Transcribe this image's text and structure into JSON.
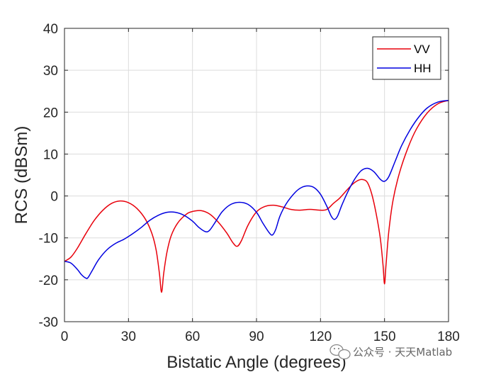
{
  "chart_data": {
    "type": "line",
    "title": "",
    "xlabel": "Bistatic Angle (degrees)",
    "ylabel": "RCS (dBSm)",
    "xlim": [
      0,
      180
    ],
    "ylim": [
      -30,
      40
    ],
    "xticks": [
      0,
      30,
      60,
      90,
      120,
      150,
      180
    ],
    "yticks": [
      -30,
      -20,
      -10,
      0,
      10,
      20,
      30,
      40
    ],
    "grid": true,
    "legend": "top-right",
    "series": [
      {
        "name": "VV",
        "color": "#e8000b",
        "points": [
          [
            0,
            -15.6
          ],
          [
            3,
            -14.6
          ],
          [
            6,
            -12.5
          ],
          [
            10,
            -9.0
          ],
          [
            14,
            -5.8
          ],
          [
            18,
            -3.4
          ],
          [
            22,
            -1.8
          ],
          [
            26,
            -1.2
          ],
          [
            30,
            -1.6
          ],
          [
            34,
            -3.0
          ],
          [
            38,
            -5.6
          ],
          [
            41,
            -9.0
          ],
          [
            43,
            -13.0
          ],
          [
            44.5,
            -18.5
          ],
          [
            45.5,
            -23.0
          ],
          [
            46.5,
            -18.5
          ],
          [
            48,
            -13.5
          ],
          [
            50,
            -9.5
          ],
          [
            53,
            -6.5
          ],
          [
            57,
            -4.4
          ],
          [
            60,
            -3.7
          ],
          [
            64,
            -3.5
          ],
          [
            68,
            -4.3
          ],
          [
            72,
            -6.2
          ],
          [
            76,
            -8.8
          ],
          [
            79,
            -11.2
          ],
          [
            81,
            -12.0
          ],
          [
            83,
            -10.6
          ],
          [
            86,
            -7.0
          ],
          [
            90,
            -3.8
          ],
          [
            94,
            -2.5
          ],
          [
            98,
            -2.2
          ],
          [
            102,
            -2.6
          ],
          [
            106,
            -3.2
          ],
          [
            110,
            -3.4
          ],
          [
            115,
            -3.2
          ],
          [
            120,
            -3.4
          ],
          [
            123,
            -3.2
          ],
          [
            126,
            -1.8
          ],
          [
            129,
            -0.5
          ],
          [
            132,
            1.2
          ],
          [
            135,
            2.8
          ],
          [
            138,
            3.8
          ],
          [
            140,
            3.9
          ],
          [
            142,
            3.2
          ],
          [
            144,
            0.5
          ],
          [
            146,
            -4.0
          ],
          [
            148,
            -10.0
          ],
          [
            149.3,
            -16.5
          ],
          [
            150,
            -21.0
          ],
          [
            150.7,
            -16.5
          ],
          [
            152,
            -8.5
          ],
          [
            154,
            -1.0
          ],
          [
            157,
            5.5
          ],
          [
            161,
            11.5
          ],
          [
            165,
            16.0
          ],
          [
            170,
            19.8
          ],
          [
            175,
            22.0
          ],
          [
            180,
            22.8
          ]
        ]
      },
      {
        "name": "HH",
        "color": "#0000e0",
        "points": [
          [
            0,
            -15.6
          ],
          [
            3,
            -16.0
          ],
          [
            6,
            -17.5
          ],
          [
            8,
            -18.8
          ],
          [
            10,
            -19.6
          ],
          [
            11,
            -19.5
          ],
          [
            13,
            -17.8
          ],
          [
            16,
            -15.2
          ],
          [
            20,
            -12.8
          ],
          [
            24,
            -11.3
          ],
          [
            28,
            -10.3
          ],
          [
            32,
            -9.0
          ],
          [
            36,
            -7.5
          ],
          [
            40,
            -5.8
          ],
          [
            44,
            -4.6
          ],
          [
            48,
            -3.9
          ],
          [
            52,
            -3.9
          ],
          [
            56,
            -4.6
          ],
          [
            60,
            -6.0
          ],
          [
            63,
            -7.5
          ],
          [
            66,
            -8.5
          ],
          [
            68,
            -8.2
          ],
          [
            71,
            -6.0
          ],
          [
            74,
            -3.7
          ],
          [
            78,
            -2.0
          ],
          [
            82,
            -1.5
          ],
          [
            86,
            -2.0
          ],
          [
            90,
            -3.9
          ],
          [
            93,
            -6.5
          ],
          [
            96,
            -8.8
          ],
          [
            97.5,
            -9.3
          ],
          [
            99,
            -8.0
          ],
          [
            101,
            -4.8
          ],
          [
            104,
            -1.8
          ],
          [
            108,
            0.8
          ],
          [
            111,
            2.0
          ],
          [
            114,
            2.4
          ],
          [
            117,
            2.0
          ],
          [
            120,
            0.4
          ],
          [
            123,
            -2.5
          ],
          [
            125,
            -4.8
          ],
          [
            126.5,
            -5.6
          ],
          [
            128,
            -4.8
          ],
          [
            130,
            -2.2
          ],
          [
            133,
            1.2
          ],
          [
            136,
            4.0
          ],
          [
            139,
            6.0
          ],
          [
            142,
            6.6
          ],
          [
            145,
            5.8
          ],
          [
            148,
            4.0
          ],
          [
            150,
            3.5
          ],
          [
            152,
            4.6
          ],
          [
            155,
            8.3
          ],
          [
            158,
            12.0
          ],
          [
            162,
            15.8
          ],
          [
            166,
            18.8
          ],
          [
            170,
            21.0
          ],
          [
            175,
            22.4
          ],
          [
            180,
            22.8
          ]
        ]
      }
    ]
  },
  "watermark": {
    "text": "公众号 · 天天Matlab",
    "icon": "wechat-icon"
  }
}
